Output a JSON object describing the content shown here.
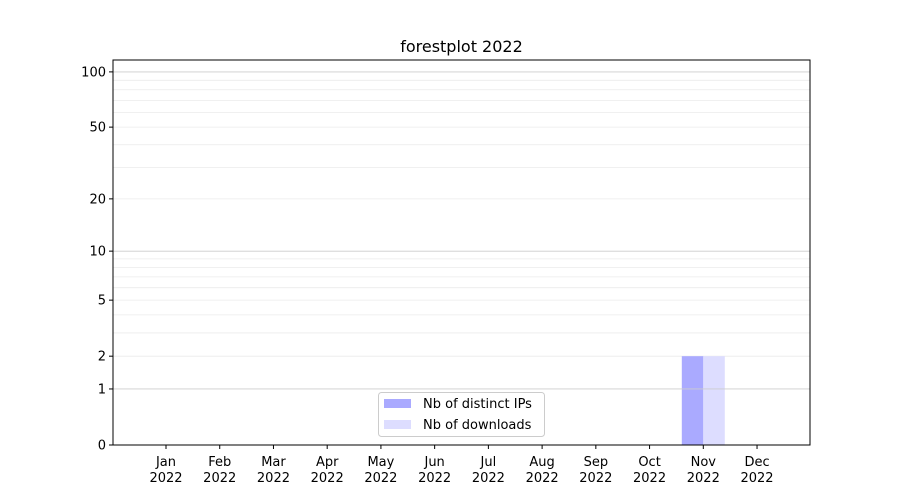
{
  "chart_data": {
    "type": "bar",
    "title": "forestplot 2022",
    "xlabel": "",
    "ylabel": "",
    "y_scale": "log10(1+y)",
    "ylim": [
      0,
      116
    ],
    "y_ticks": [
      0,
      1,
      2,
      5,
      10,
      20,
      50,
      100
    ],
    "y_tick_labels": [
      "0",
      "1",
      "2",
      "5",
      "10",
      "20",
      "50",
      "100"
    ],
    "grid": true,
    "legend_placement": "lower-center",
    "categories": [
      [
        "Jan",
        "2022"
      ],
      [
        "Feb",
        "2022"
      ],
      [
        "Mar",
        "2022"
      ],
      [
        "Apr",
        "2022"
      ],
      [
        "May",
        "2022"
      ],
      [
        "Jun",
        "2022"
      ],
      [
        "Jul",
        "2022"
      ],
      [
        "Aug",
        "2022"
      ],
      [
        "Sep",
        "2022"
      ],
      [
        "Oct",
        "2022"
      ],
      [
        "Nov",
        "2022"
      ],
      [
        "Dec",
        "2022"
      ]
    ],
    "series": [
      {
        "name": "Nb of distinct IPs",
        "color": "#aaaaff",
        "values": [
          0,
          0,
          0,
          0,
          0,
          0,
          0,
          0,
          0,
          0,
          2,
          0
        ]
      },
      {
        "name": "Nb of downloads",
        "color": "#ddddff",
        "values": [
          0,
          0,
          0,
          0,
          0,
          0,
          0,
          0,
          0,
          0,
          2,
          0
        ]
      }
    ]
  }
}
